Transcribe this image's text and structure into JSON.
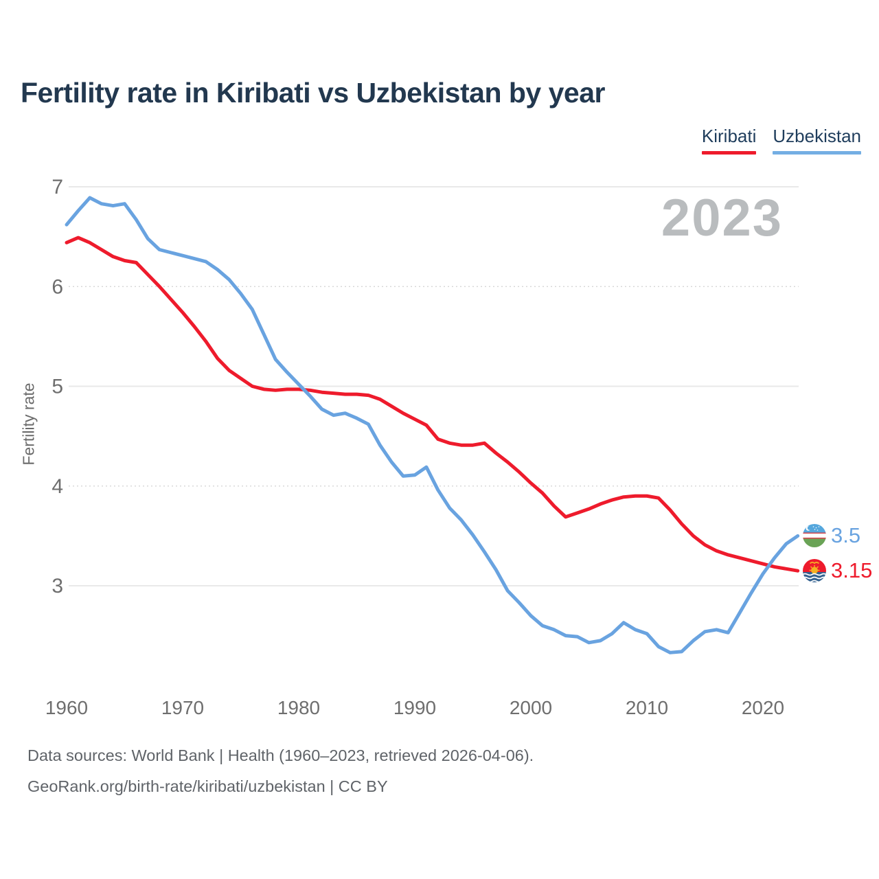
{
  "title": "Fertility rate in Kiribati vs Uzbekistan by year",
  "watermark": "2023",
  "legend": [
    {
      "label": "Kiribati",
      "color": "#ee1b2c"
    },
    {
      "label": "Uzbekistan",
      "color": "#74aee3"
    }
  ],
  "y_axis": {
    "label": "Fertility rate",
    "ticks": [
      {
        "value": 7,
        "line": "solid"
      },
      {
        "value": 6,
        "line": "dotted"
      },
      {
        "value": 5,
        "line": "solid"
      },
      {
        "value": 4,
        "line": "dotted"
      },
      {
        "value": 3,
        "line": "solid"
      }
    ]
  },
  "x_axis": {
    "ticks": [
      1960,
      1970,
      1980,
      1990,
      2000,
      2010,
      2020
    ]
  },
  "chart_data": {
    "type": "line",
    "title": "Fertility rate in Kiribati vs Uzbekistan by year",
    "xlabel": "",
    "ylabel": "Fertility rate",
    "x_range": [
      1960,
      2023
    ],
    "ylim": [
      2.2,
      7.1
    ],
    "y_ticks": [
      3,
      4,
      5,
      6,
      7
    ],
    "grid": "horizontal",
    "legend_position": "top-right",
    "x": [
      1960,
      1961,
      1962,
      1963,
      1964,
      1965,
      1966,
      1967,
      1968,
      1969,
      1970,
      1971,
      1972,
      1973,
      1974,
      1975,
      1976,
      1977,
      1978,
      1979,
      1980,
      1981,
      1982,
      1983,
      1984,
      1985,
      1986,
      1987,
      1988,
      1989,
      1990,
      1991,
      1992,
      1993,
      1994,
      1995,
      1996,
      1997,
      1998,
      1999,
      2000,
      2001,
      2002,
      2003,
      2004,
      2005,
      2006,
      2007,
      2008,
      2009,
      2010,
      2011,
      2012,
      2013,
      2014,
      2015,
      2016,
      2017,
      2018,
      2019,
      2020,
      2021,
      2022,
      2023
    ],
    "series": [
      {
        "name": "Kiribati",
        "color": "#ee1b2c",
        "end_label": "3.15",
        "values": [
          6.44,
          6.49,
          6.44,
          6.37,
          6.3,
          6.26,
          6.24,
          6.12,
          6.0,
          5.87,
          5.74,
          5.6,
          5.45,
          5.28,
          5.16,
          5.08,
          5.0,
          4.97,
          4.96,
          4.97,
          4.97,
          4.96,
          4.94,
          4.93,
          4.92,
          4.92,
          4.91,
          4.87,
          4.8,
          4.73,
          4.67,
          4.61,
          4.47,
          4.43,
          4.41,
          4.41,
          4.43,
          4.33,
          4.24,
          4.14,
          4.03,
          3.93,
          3.8,
          3.69,
          3.73,
          3.77,
          3.82,
          3.86,
          3.89,
          3.9,
          3.9,
          3.88,
          3.76,
          3.62,
          3.5,
          3.41,
          3.35,
          3.31,
          3.28,
          3.25,
          3.22,
          3.19,
          3.17,
          3.15
        ]
      },
      {
        "name": "Uzbekistan",
        "color": "#69a3e0",
        "end_label": "3.5",
        "values": [
          6.62,
          6.76,
          6.89,
          6.83,
          6.81,
          6.83,
          6.67,
          6.48,
          6.37,
          6.34,
          6.31,
          6.28,
          6.25,
          6.17,
          6.07,
          5.93,
          5.77,
          5.52,
          5.27,
          5.14,
          5.02,
          4.9,
          4.77,
          4.71,
          4.73,
          4.68,
          4.62,
          4.41,
          4.24,
          4.1,
          4.11,
          4.19,
          3.96,
          3.78,
          3.66,
          3.51,
          3.34,
          3.16,
          2.95,
          2.83,
          2.7,
          2.6,
          2.56,
          2.5,
          2.49,
          2.43,
          2.45,
          2.52,
          2.63,
          2.56,
          2.52,
          2.39,
          2.33,
          2.34,
          2.45,
          2.54,
          2.56,
          2.53,
          2.73,
          2.93,
          3.12,
          3.28,
          3.42,
          3.5
        ]
      }
    ]
  },
  "footer": {
    "line1": "Data sources: World Bank | Health (1960–2023, retrieved 2026-04-06).",
    "line2": "GeoRank.org/birth-rate/kiribati/uzbekistan | CC BY"
  }
}
